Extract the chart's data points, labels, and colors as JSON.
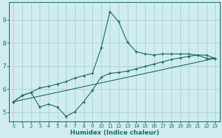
{
  "xlabel": "Humidex (Indice chaleur)",
  "bg_color": "#d0ecee",
  "grid_color": "#aad4d8",
  "line_color": "#1a6b6b",
  "xlim": [
    -0.5,
    23.5
  ],
  "ylim": [
    4.6,
    9.75
  ],
  "xticks": [
    0,
    1,
    2,
    3,
    4,
    5,
    6,
    7,
    8,
    9,
    10,
    11,
    12,
    13,
    14,
    15,
    16,
    17,
    18,
    19,
    20,
    21,
    22,
    23
  ],
  "yticks": [
    5,
    6,
    7,
    8,
    9
  ],
  "line1_x": [
    0,
    1,
    2,
    3,
    4,
    5,
    6,
    7,
    8,
    9,
    10,
    11,
    12,
    13,
    14,
    15,
    16,
    17,
    18,
    19,
    20,
    21,
    22,
    23
  ],
  "line1_y": [
    5.45,
    5.72,
    5.85,
    6.05,
    6.12,
    6.22,
    6.32,
    6.48,
    6.58,
    6.68,
    7.78,
    9.35,
    8.92,
    8.02,
    7.62,
    7.52,
    7.48,
    7.52,
    7.52,
    7.52,
    7.52,
    7.47,
    7.33,
    7.33
  ],
  "line2_x": [
    0,
    1,
    2,
    3,
    4,
    5,
    6,
    7,
    8,
    9,
    10,
    11,
    12,
    13,
    14,
    15,
    16,
    17,
    18,
    19,
    20,
    21,
    22,
    23
  ],
  "line2_y": [
    5.45,
    5.72,
    5.85,
    5.22,
    5.35,
    5.22,
    4.82,
    5.02,
    5.45,
    5.95,
    6.52,
    6.68,
    6.72,
    6.78,
    6.88,
    6.98,
    7.08,
    7.18,
    7.28,
    7.35,
    7.42,
    7.47,
    7.47,
    7.33
  ],
  "line3_x": [
    0,
    23
  ],
  "line3_y": [
    5.45,
    7.33
  ]
}
